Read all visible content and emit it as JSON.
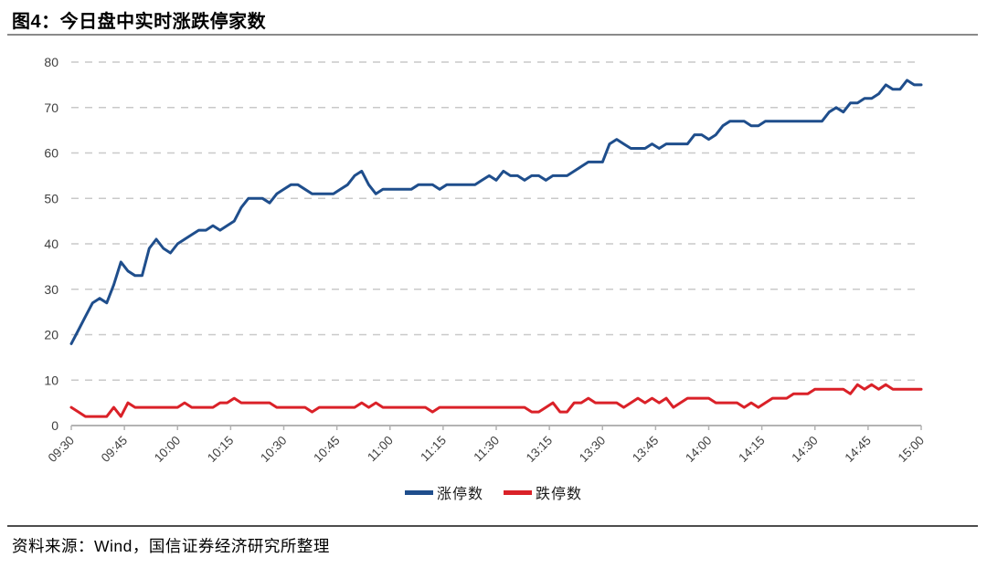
{
  "page": {
    "figure_title": "图4：今日盘中实时涨跌停家数",
    "source_note": "资料来源：Wind，国信证券经济研究所整理"
  },
  "colors": {
    "limit_up_line": "#1f4e8c",
    "limit_down_line": "#da2128",
    "gridline": "#c9c9c9",
    "axis_line": "#b3b3b3",
    "tick_label": "#404040",
    "title_text": "#000000",
    "divider_top": "#8a8a8a",
    "divider_bottom": "#4d4d4d"
  },
  "chart_data": {
    "type": "line",
    "title": "今日盘中实时涨跌停家数",
    "xlabel": "",
    "ylabel": "",
    "ylim": [
      0,
      80
    ],
    "y_ticks": [
      0,
      10,
      20,
      30,
      40,
      50,
      60,
      70,
      80
    ],
    "x_tick_labels": [
      "09:30",
      "09:45",
      "10:00",
      "10:15",
      "10:30",
      "10:45",
      "11:00",
      "11:15",
      "11:30",
      "13:15",
      "13:30",
      "13:45",
      "14:00",
      "14:15",
      "14:30",
      "14:45",
      "15:00"
    ],
    "x_minutes_per_point": 2,
    "x_total_trading_minutes": 240,
    "grid": "horizontal-dashed",
    "legend_position": "bottom-center",
    "series": [
      {
        "name": "涨停数",
        "color": "#1f4e8c",
        "values": [
          18,
          21,
          24,
          27,
          28,
          27,
          31,
          36,
          34,
          33,
          33,
          39,
          41,
          39,
          38,
          40,
          41,
          42,
          43,
          43,
          44,
          43,
          44,
          45,
          48,
          50,
          50,
          50,
          49,
          51,
          52,
          53,
          53,
          52,
          51,
          51,
          51,
          51,
          52,
          53,
          55,
          56,
          53,
          51,
          52,
          52,
          52,
          52,
          52,
          53,
          53,
          53,
          52,
          53,
          53,
          53,
          53,
          53,
          54,
          55,
          54,
          56,
          55,
          55,
          54,
          55,
          55,
          54,
          55,
          55,
          55,
          56,
          57,
          58,
          58,
          58,
          62,
          63,
          62,
          61,
          61,
          61,
          62,
          61,
          62,
          62,
          62,
          62,
          64,
          64,
          63,
          64,
          66,
          67,
          67,
          67,
          66,
          66,
          67,
          67,
          67,
          67,
          67,
          67,
          67,
          67,
          67,
          69,
          70,
          69,
          71,
          71,
          72,
          72,
          73,
          75,
          74,
          74,
          76,
          75,
          75
        ]
      },
      {
        "name": "跌停数",
        "color": "#da2128",
        "values": [
          4,
          3,
          2,
          2,
          2,
          2,
          4,
          2,
          5,
          4,
          4,
          4,
          4,
          4,
          4,
          4,
          5,
          4,
          4,
          4,
          4,
          5,
          5,
          6,
          5,
          5,
          5,
          5,
          5,
          4,
          4,
          4,
          4,
          4,
          3,
          4,
          4,
          4,
          4,
          4,
          4,
          5,
          4,
          5,
          4,
          4,
          4,
          4,
          4,
          4,
          4,
          3,
          4,
          4,
          4,
          4,
          4,
          4,
          4,
          4,
          4,
          4,
          4,
          4,
          4,
          3,
          3,
          4,
          5,
          3,
          3,
          5,
          5,
          6,
          5,
          5,
          5,
          5,
          4,
          5,
          6,
          5,
          6,
          5,
          6,
          4,
          5,
          6,
          6,
          6,
          6,
          5,
          5,
          5,
          5,
          4,
          5,
          4,
          5,
          6,
          6,
          6,
          7,
          7,
          7,
          8,
          8,
          8,
          8,
          8,
          7,
          9,
          8,
          9,
          8,
          9,
          8,
          8,
          8,
          8,
          8
        ]
      }
    ]
  }
}
